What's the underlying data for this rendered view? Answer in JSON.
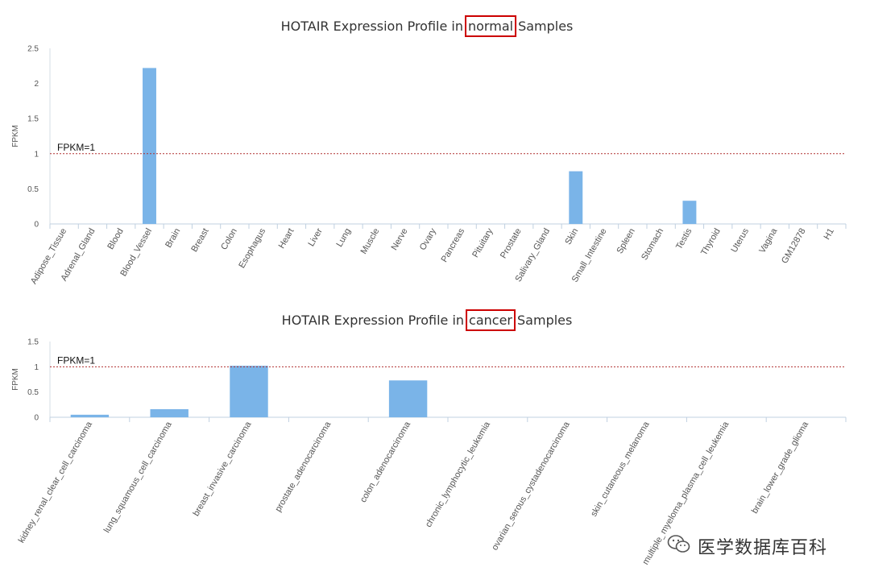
{
  "chart_data": [
    {
      "type": "bar",
      "title_parts": [
        "HOTAIR Expression Profile in",
        "normal",
        "Samples"
      ],
      "highlight_color": "#cc0000",
      "ylabel": "FPKM",
      "ylim": [
        0,
        2.5
      ],
      "yticks": [
        "0",
        "0.5",
        "1",
        "1.5",
        "2",
        "2.5"
      ],
      "reference_line": {
        "value": 1,
        "label": "FPKM=1",
        "color": "#b03030"
      },
      "bar_color": "#7ab4e8",
      "categories": [
        "Adipose_Tissue",
        "Adrenal_Gland",
        "Blood",
        "Blood_Vessel",
        "Brain",
        "Breast",
        "Colon",
        "Esophagus",
        "Heart",
        "Liver",
        "Lung",
        "Muscle",
        "Nerve",
        "Ovary",
        "Pancreas",
        "Pituitary",
        "Prostate",
        "Salivary_Gland",
        "Skin",
        "Small_Intestine",
        "Spleen",
        "Stomach",
        "Testis",
        "Thyroid",
        "Uterus",
        "Vagina",
        "GM12878",
        "H1"
      ],
      "values": [
        0,
        0,
        0,
        2.22,
        0,
        0,
        0,
        0,
        0,
        0,
        0,
        0,
        0,
        0,
        0,
        0,
        0,
        0,
        0.75,
        0,
        0,
        0,
        0.33,
        0,
        0,
        0,
        0,
        0
      ]
    },
    {
      "type": "bar",
      "title_parts": [
        "HOTAIR Expression Profile in",
        "cancer",
        "Samples"
      ],
      "highlight_color": "#cc0000",
      "ylabel": "FPKM",
      "ylim": [
        0,
        1.5
      ],
      "yticks": [
        "0",
        "0.5",
        "1",
        "1.5"
      ],
      "reference_line": {
        "value": 1,
        "label": "FPKM=1",
        "color": "#b03030"
      },
      "bar_color": "#7ab4e8",
      "categories": [
        "kidney_renal_clear_cell_carcinoma",
        "lung_squamous_cell_carcinoma",
        "breast_invasive_carcinoma",
        "prostate_adenocarcinoma",
        "colon_adenocarcinoma",
        "chronic_lymphocytic_leukemia",
        "ovarian_serous_cystadenocarcinoma",
        "skin_cutaneous_melanoma",
        "multiple_myeloma_plasma_cell_leukemia",
        "brain_lower_grade_glioma"
      ],
      "values": [
        0.05,
        0.16,
        1.02,
        0,
        0.73,
        0,
        0,
        0,
        0,
        0
      ]
    }
  ],
  "watermark": {
    "text": "医学数据库百科",
    "icon": "wechat-icon"
  }
}
